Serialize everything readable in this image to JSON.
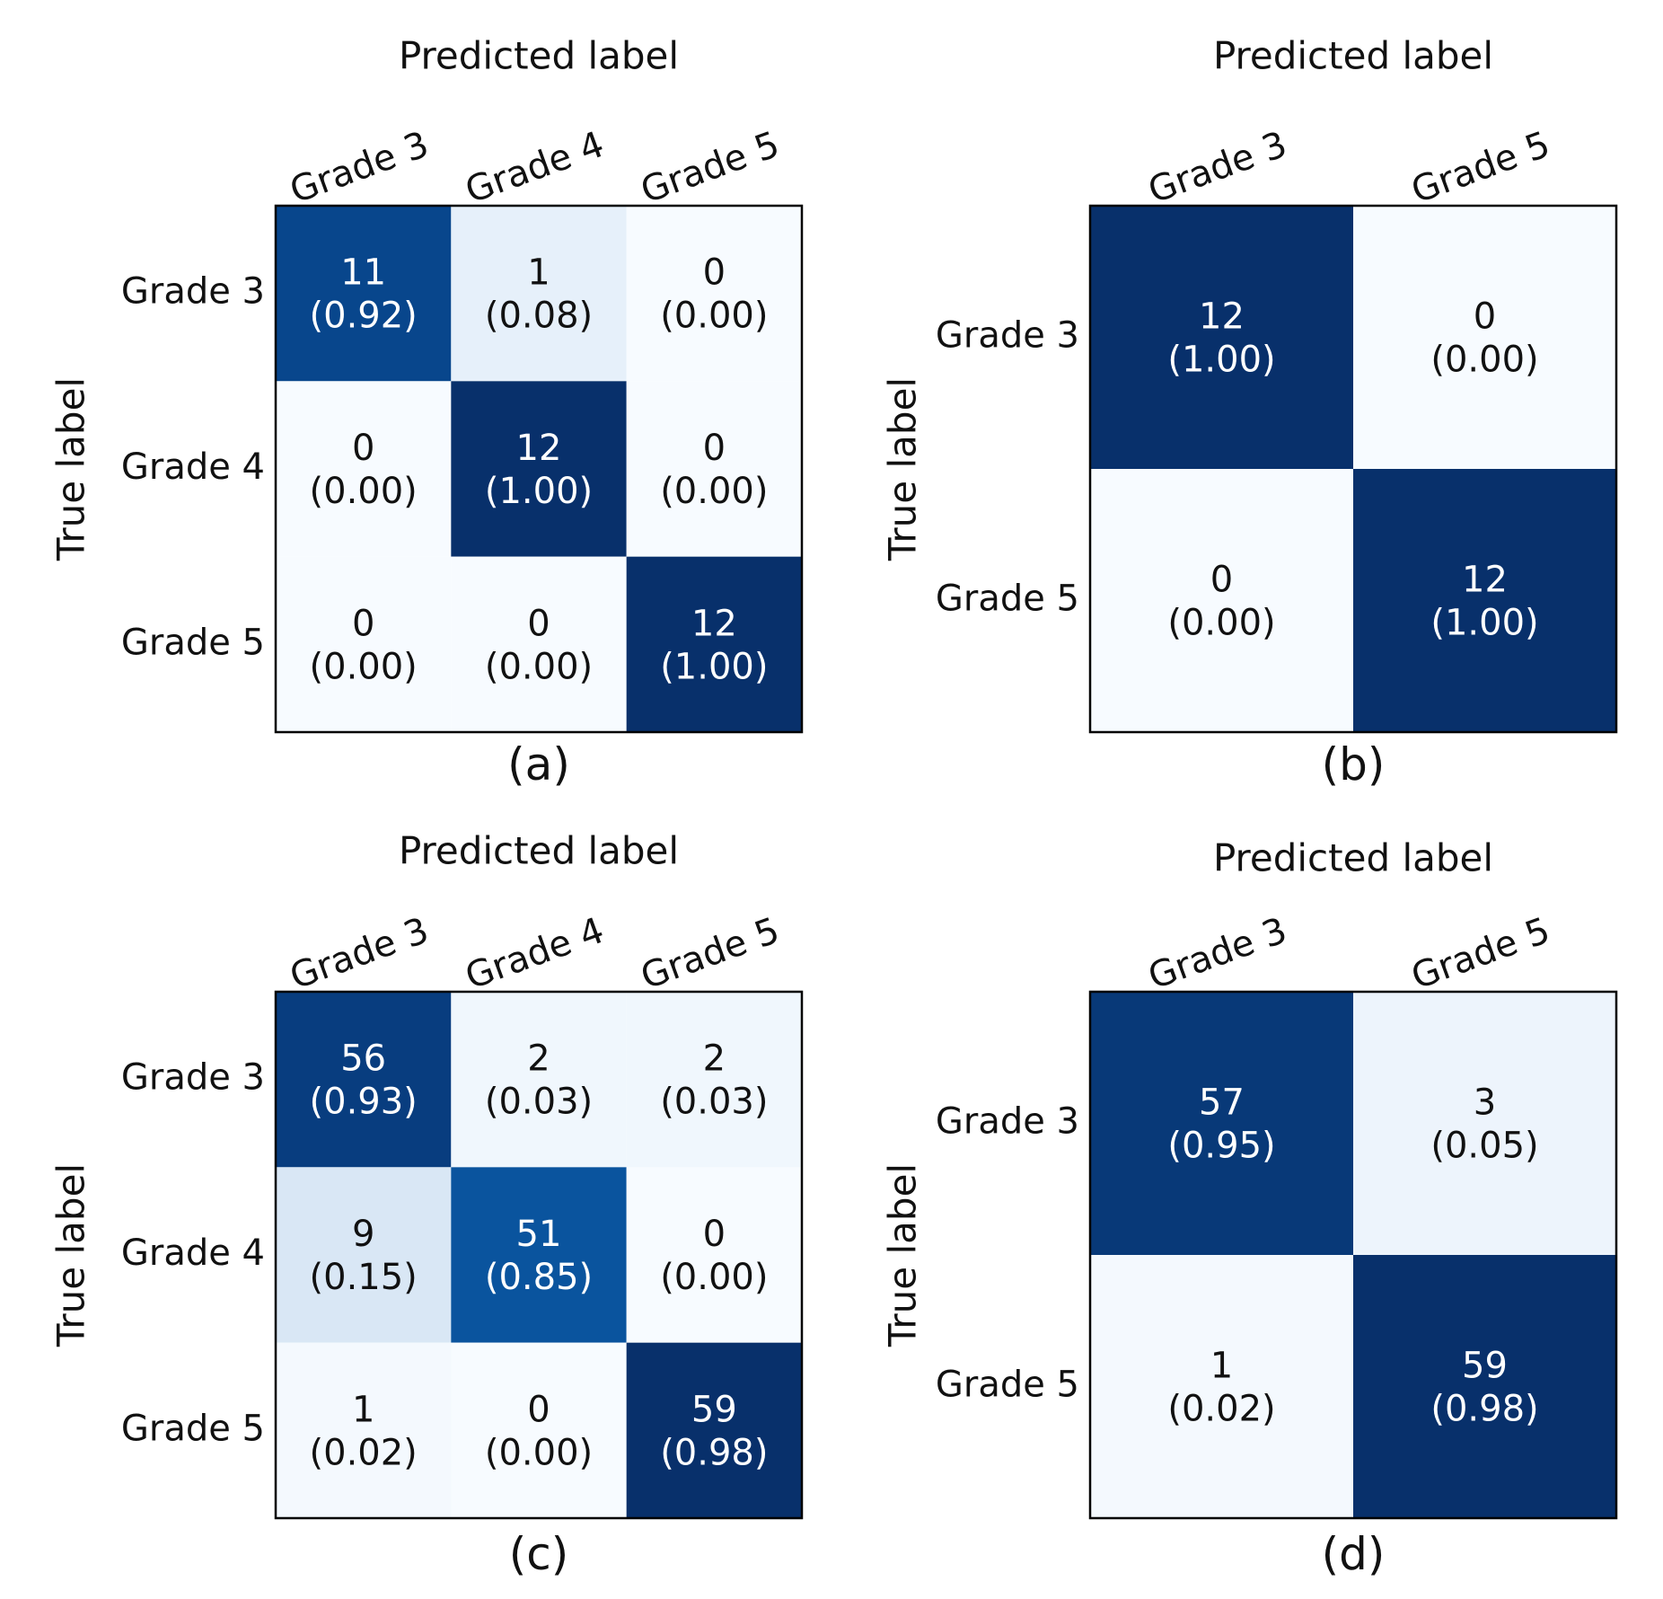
{
  "chart_data": [
    {
      "type": "heatmap",
      "panel_label": "(a)",
      "xlabel": "Predicted label",
      "ylabel": "True label",
      "x_categories": [
        "Grade 3",
        "Grade 4",
        "Grade 5"
      ],
      "y_categories": [
        "Grade 3",
        "Grade 4",
        "Grade 5"
      ],
      "counts": [
        [
          11,
          1,
          0
        ],
        [
          0,
          12,
          0
        ],
        [
          0,
          0,
          12
        ]
      ],
      "labels": [
        [
          "11\n(0.92)",
          "1\n(0.08)",
          "0\n(0.00)"
        ],
        [
          "0\n(0.00)",
          "12\n(1.00)",
          "0\n(0.00)"
        ],
        [
          "0\n(0.00)",
          "0\n(0.00)",
          "12\n(1.00)"
        ]
      ],
      "colormap": "Blues"
    },
    {
      "type": "heatmap",
      "panel_label": "(b)",
      "xlabel": "Predicted label",
      "ylabel": "True label",
      "x_categories": [
        "Grade 3",
        "Grade 5"
      ],
      "y_categories": [
        "Grade 3",
        "Grade 5"
      ],
      "counts": [
        [
          12,
          0
        ],
        [
          0,
          12
        ]
      ],
      "labels": [
        [
          "12\n(1.00)",
          "0\n(0.00)"
        ],
        [
          "0\n(0.00)",
          "12\n(1.00)"
        ]
      ],
      "colormap": "Blues"
    },
    {
      "type": "heatmap",
      "panel_label": "(c)",
      "xlabel": "Predicted label",
      "ylabel": "True label",
      "x_categories": [
        "Grade 3",
        "Grade 4",
        "Grade 5"
      ],
      "y_categories": [
        "Grade 3",
        "Grade 4",
        "Grade 5"
      ],
      "counts": [
        [
          56,
          2,
          2
        ],
        [
          9,
          51,
          0
        ],
        [
          1,
          0,
          59
        ]
      ],
      "labels": [
        [
          "56\n(0.93)",
          "2\n(0.03)",
          "2\n(0.03)"
        ],
        [
          "9\n(0.15)",
          "51\n(0.85)",
          "0\n(0.00)"
        ],
        [
          "1\n(0.02)",
          "0\n(0.00)",
          "59\n(0.98)"
        ]
      ],
      "colormap": "Blues"
    },
    {
      "type": "heatmap",
      "panel_label": "(d)",
      "xlabel": "Predicted label",
      "ylabel": "True label",
      "x_categories": [
        "Grade 3",
        "Grade 5"
      ],
      "y_categories": [
        "Grade 3",
        "Grade 5"
      ],
      "counts": [
        [
          57,
          3
        ],
        [
          1,
          59
        ]
      ],
      "labels": [
        [
          "57\n(0.95)",
          "3\n(0.05)"
        ],
        [
          "1\n(0.02)",
          "59\n(0.98)"
        ]
      ],
      "colormap": "Blues"
    }
  ]
}
